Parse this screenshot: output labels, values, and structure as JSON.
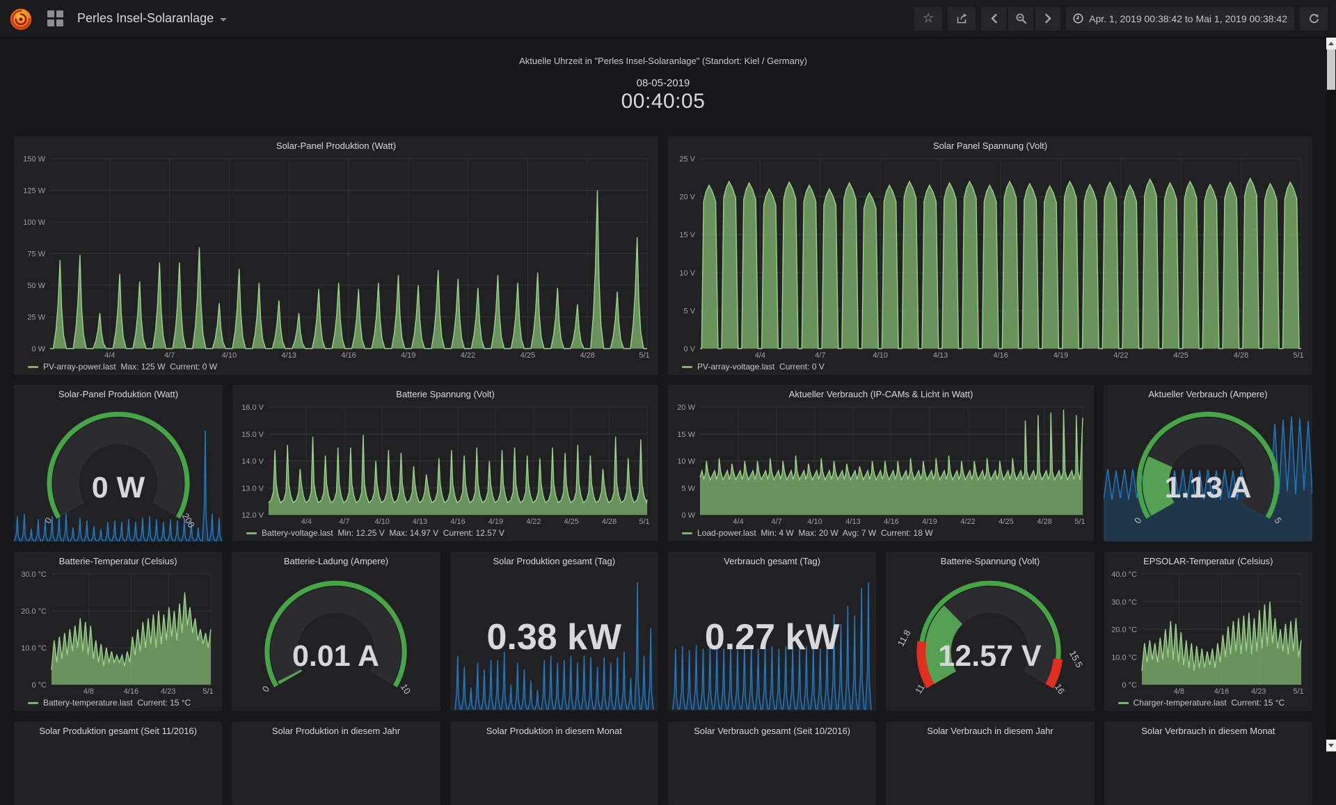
{
  "navbar": {
    "title": "Perles Insel-Solaranlage",
    "time_range": "Apr. 1, 2019 00:38:42 to Mai 1, 2019 00:38:42"
  },
  "clock_panel": {
    "title": "Aktuelle Uhrzeit in \"Perles Insel-Solaranlage\" (Standort: Kiel / Germany)",
    "date": "08-05-2019",
    "time": "00:40:05"
  },
  "colors": {
    "green": "#7eb26d",
    "green_line": "#9ed18d",
    "blue": "#1f78c1",
    "gauge_green": "#47a447",
    "gauge_wedge": "#56a053",
    "gauge_red": "#e02f1f"
  },
  "chart_data": [
    {
      "id": "solar_power",
      "type": "area",
      "shape": "spike",
      "title": "Solar-Panel Produktion (Watt)",
      "ymin": 0,
      "ymax": 150,
      "ml": 46,
      "yticks": [
        "150 W",
        "125 W",
        "100 W",
        "75 W",
        "50 W",
        "25 W",
        "0 W"
      ],
      "xticks": [
        {
          "f": 0.1,
          "l": "4/4"
        },
        {
          "f": 0.2,
          "l": "4/7"
        },
        {
          "f": 0.3,
          "l": "4/10"
        },
        {
          "f": 0.4,
          "l": "4/13"
        },
        {
          "f": 0.5,
          "l": "4/16"
        },
        {
          "f": 0.6,
          "l": "4/19"
        },
        {
          "f": 0.7,
          "l": "4/22"
        },
        {
          "f": 0.8,
          "l": "4/25"
        },
        {
          "f": 0.9,
          "l": "4/28"
        },
        {
          "f": 1,
          "l": "5/1"
        }
      ],
      "day_peaks": [
        70,
        74,
        28,
        59,
        53,
        68,
        68,
        80,
        36,
        63,
        52,
        38,
        28,
        47,
        52,
        47,
        52,
        58,
        50,
        62,
        55,
        48,
        58,
        52,
        60,
        48,
        35,
        125,
        45,
        88
      ],
      "color": "#7eb26d",
      "line": "#9ed18d",
      "legend": {
        "name": "PV-array-power.last",
        "stats": [
          "Max: 125 W",
          "Current: 0 W"
        ]
      }
    },
    {
      "id": "solar_voltage",
      "type": "area",
      "shape": "plateau",
      "title": "Solar Panel Spannung (Volt)",
      "ymin": 0,
      "ymax": 25,
      "ml": 40,
      "yticks": [
        "25 V",
        "20 V",
        "15 V",
        "10 V",
        "5 V",
        "0 V"
      ],
      "xticks": [
        {
          "f": 0.1,
          "l": "4/4"
        },
        {
          "f": 0.2,
          "l": "4/7"
        },
        {
          "f": 0.3,
          "l": "4/10"
        },
        {
          "f": 0.4,
          "l": "4/13"
        },
        {
          "f": 0.5,
          "l": "4/16"
        },
        {
          "f": 0.6,
          "l": "4/19"
        },
        {
          "f": 0.7,
          "l": "4/22"
        },
        {
          "f": 0.8,
          "l": "4/25"
        },
        {
          "f": 0.9,
          "l": "4/28"
        },
        {
          "f": 1,
          "l": "5/1"
        }
      ],
      "day_peaks": [
        21.5,
        22,
        21.8,
        21,
        21.9,
        21.5,
        21,
        21.8,
        20.5,
        21.5,
        22,
        21.5,
        21.8,
        22,
        21.5,
        22,
        21.7,
        21.4,
        22,
        21.6,
        21.9,
        21.5,
        22.3,
        21.8,
        22,
        21.6,
        21.9,
        22.4,
        21.7,
        21.9
      ],
      "color": "#7eb26d",
      "line": "#9ed18d",
      "legend": {
        "name": "PV-array-voltage.last",
        "stats": [
          "Current: 0 V"
        ]
      }
    },
    {
      "id": "gauge_solar",
      "type": "gauge",
      "title": "Solar-Panel Produktion (Watt)",
      "text": "0 W",
      "value": 0,
      "min": 0,
      "max": 200,
      "segments": [
        {
          "from": 0,
          "to": 200,
          "color": "#47a447",
          "w": 7
        }
      ],
      "spark": {
        "mode": "spike",
        "color": "#1f78c1",
        "heights": [
          18,
          20,
          9,
          16,
          15,
          18,
          18,
          20,
          10,
          17,
          15,
          11,
          9,
          14,
          15,
          14,
          16,
          14,
          17,
          18,
          16,
          14,
          16,
          15,
          16,
          14,
          10,
          80,
          20,
          17
        ]
      }
    },
    {
      "id": "battery_voltage",
      "type": "area",
      "shape": "battv",
      "title": "Batterie Spannung (Volt)",
      "ymin": 12,
      "ymax": 16,
      "ml": 46,
      "yticks": [
        "16.0 V",
        "15.0 V",
        "14.0 V",
        "13.0 V",
        "12.0 V"
      ],
      "xticks": [
        {
          "f": 0.1,
          "l": "4/4"
        },
        {
          "f": 0.2,
          "l": "4/7"
        },
        {
          "f": 0.3,
          "l": "4/10"
        },
        {
          "f": 0.4,
          "l": "4/13"
        },
        {
          "f": 0.5,
          "l": "4/16"
        },
        {
          "f": 0.6,
          "l": "4/19"
        },
        {
          "f": 0.7,
          "l": "4/22"
        },
        {
          "f": 0.8,
          "l": "4/25"
        },
        {
          "f": 0.9,
          "l": "4/28"
        },
        {
          "f": 1,
          "l": "5/1"
        }
      ],
      "day_peaks": [
        14.4,
        14.6,
        13.7,
        14.9,
        14.2,
        14.5,
        14.5,
        14.97,
        14.0,
        14.4,
        14.3,
        13.8,
        13.5,
        14.1,
        14.4,
        14.2,
        14.5,
        14.0,
        14.4,
        14.5,
        14.2,
        14.1,
        14.5,
        14.3,
        14.6,
        14.2,
        13.7,
        14.9,
        14.1,
        14.8
      ],
      "color": "#7eb26d",
      "line": "#9ed18d",
      "legend": {
        "name": "Battery-voltage.last",
        "stats": [
          "Min: 12.25 V",
          "Max: 14.97 V",
          "Current: 12.57 V"
        ]
      }
    },
    {
      "id": "load_power",
      "type": "area",
      "shape": "load",
      "title": "Aktueller Verbrauch (IP-CAMs & Licht in Watt)",
      "ymin": 0,
      "ymax": 20,
      "ml": 40,
      "yticks": [
        "20 W",
        "15 W",
        "10 W",
        "5 W",
        "0 W"
      ],
      "xticks": [
        {
          "f": 0.1,
          "l": "4/4"
        },
        {
          "f": 0.2,
          "l": "4/7"
        },
        {
          "f": 0.3,
          "l": "4/10"
        },
        {
          "f": 0.4,
          "l": "4/13"
        },
        {
          "f": 0.5,
          "l": "4/16"
        },
        {
          "f": 0.6,
          "l": "4/19"
        },
        {
          "f": 0.7,
          "l": "4/22"
        },
        {
          "f": 0.8,
          "l": "4/25"
        },
        {
          "f": 0.9,
          "l": "4/28"
        },
        {
          "f": 1,
          "l": "5/1"
        }
      ],
      "day_peaks": [
        10,
        10.5,
        9.5,
        10,
        10,
        10.5,
        10,
        11,
        9.5,
        10.5,
        10,
        9.5,
        9,
        10,
        10,
        10,
        10.5,
        10,
        10.5,
        11,
        10,
        10,
        10.5,
        10,
        10.5,
        17.5,
        18.5,
        19,
        19.5,
        18.5
      ],
      "color": "#7eb26d",
      "line": "#9ed18d",
      "legend": {
        "name": "Load-power.last",
        "stats": [
          "Min: 4 W",
          "Max: 20 W",
          "Avg: 7 W",
          "Current: 18 W"
        ]
      }
    },
    {
      "id": "gauge_ampere",
      "type": "gauge",
      "title": "Aktueller Verbrauch (Ampere)",
      "text": "1.13 A",
      "value": 1.13,
      "min": 0,
      "max": 5,
      "segments": [
        {
          "from": 0,
          "to": 5,
          "color": "#47a447",
          "w": 7
        }
      ],
      "spark": {
        "mode": "wave",
        "color": "#1f78c1",
        "heights": [
          30,
          52,
          30,
          51,
          31,
          52,
          30,
          52,
          31,
          51,
          30,
          52,
          30,
          51,
          31,
          52,
          30,
          51,
          31,
          52,
          30,
          52,
          31,
          51,
          30,
          52,
          31,
          51,
          30,
          52,
          31,
          51,
          30,
          52,
          30,
          51,
          31,
          52,
          30,
          48,
          34,
          85,
          34,
          88,
          36,
          90,
          34,
          89,
          37,
          87,
          34
        ]
      }
    },
    {
      "id": "battery_temp",
      "type": "area",
      "shape": "line",
      "title": "Batterie-Temperatur (Celsius)",
      "ymin": 0,
      "ymax": 30,
      "ml": 48,
      "yticks": [
        "30.0 °C",
        "20.0 °C",
        "10.0 °C",
        "0 °C"
      ],
      "xticks": [
        {
          "f": 0.233,
          "l": "4/8"
        },
        {
          "f": 0.5,
          "l": "4/16"
        },
        {
          "f": 0.733,
          "l": "4/23"
        },
        {
          "f": 1,
          "l": "5/1"
        }
      ],
      "values": [
        4,
        12,
        6,
        13,
        7,
        14,
        8,
        15,
        9,
        16,
        10,
        18,
        9,
        17,
        8,
        16,
        7,
        12,
        6,
        11,
        5,
        10,
        6,
        9,
        6,
        8,
        6,
        8,
        5,
        9,
        6,
        13,
        8,
        15,
        9,
        17,
        10,
        18,
        11,
        19,
        10,
        20,
        11,
        19,
        12,
        21,
        13,
        20,
        12,
        22,
        14,
        25,
        16,
        21,
        14,
        18,
        12,
        15,
        11,
        14,
        10,
        15
      ],
      "color": "#7eb26d",
      "line": "#9ed18d",
      "legend": {
        "name": "Battery-temperature.last",
        "stats": [
          "Current: 15 °C"
        ]
      }
    },
    {
      "id": "gauge_ladung",
      "type": "gauge",
      "title": "Batterie-Ladung (Ampere)",
      "text": "0.01 A",
      "value": 0.01,
      "min": 0,
      "max": 10,
      "segments": [
        {
          "from": 0,
          "to": 10,
          "color": "#47a447",
          "w": 7
        }
      ]
    },
    {
      "id": "prod_tag",
      "type": "singlestat",
      "title": "Solar Produktion gesamt (Tag)",
      "value": "0.38 kW",
      "spark": {
        "mode": "spike",
        "color": "#1f78c1",
        "heights": [
          39,
          31,
          16,
          34,
          29,
          36,
          36,
          42,
          18,
          34,
          29,
          21,
          14,
          36,
          39,
          34,
          36,
          39,
          34,
          39,
          38,
          31,
          38,
          34,
          38,
          42,
          23,
          92,
          39,
          59
        ]
      }
    },
    {
      "id": "verbrauch_tag",
      "type": "singlestat",
      "title": "Verbrauch gesamt (Tag)",
      "value": "0.27 kW",
      "spark": {
        "mode": "spike",
        "color": "#1f78c1",
        "heights": [
          44,
          46,
          43,
          47,
          44,
          46,
          47,
          44,
          46,
          43,
          47,
          46,
          44,
          47,
          46,
          44,
          46,
          47,
          44,
          46,
          47,
          44,
          52,
          69,
          62,
          75,
          68,
          88,
          92
        ]
      }
    },
    {
      "id": "gauge_battv",
      "type": "gauge",
      "title": "Batterie-Spannung (Volt)",
      "text": "12.57 V",
      "value": 12.57,
      "min": 11,
      "max": 16,
      "segments": [
        {
          "from": 11,
          "to": 11.8,
          "color": "#e02f1f",
          "w": 13
        },
        {
          "from": 11.8,
          "to": 15.5,
          "color": "#47a447",
          "w": 7
        },
        {
          "from": 15.5,
          "to": 16,
          "color": "#e02f1f",
          "w": 13
        }
      ],
      "threshold_labels": [
        {
          "v": 11.8
        },
        {
          "v": 15.5
        }
      ]
    },
    {
      "id": "epsolar_temp",
      "type": "area",
      "shape": "line",
      "title": "EPSOLAR-Temperatur (Celsius)",
      "ymin": 0,
      "ymax": 40,
      "ml": 48,
      "yticks": [
        "40.0 °C",
        "30.0 °C",
        "20.0 °C",
        "10.0 °C",
        "0 °C"
      ],
      "xticks": [
        {
          "f": 0.233,
          "l": "4/8"
        },
        {
          "f": 0.5,
          "l": "4/16"
        },
        {
          "f": 0.733,
          "l": "4/23"
        },
        {
          "f": 1,
          "l": "5/1"
        }
      ],
      "values": [
        5,
        15,
        8,
        16,
        9,
        15,
        8,
        17,
        9,
        20,
        10,
        23,
        9,
        22,
        8,
        19,
        7,
        16,
        6,
        15,
        5,
        14,
        6,
        13,
        6,
        12,
        7,
        13,
        6,
        15,
        8,
        18,
        10,
        21,
        11,
        23,
        12,
        24,
        11,
        25,
        12,
        26,
        11,
        24,
        12,
        27,
        13,
        29,
        14,
        30,
        15,
        24,
        13,
        20,
        12,
        22,
        11,
        23,
        12,
        24,
        10,
        16
      ],
      "color": "#7eb26d",
      "line": "#9ed18d",
      "legend": {
        "name": "Charger-temperature.last",
        "stats": [
          "Current: 15 °C"
        ]
      }
    }
  ],
  "bottom_row": [
    "Solar Produktion gesamt (Seit 11/2016)",
    "Solar Produktion in diesem Jahr",
    "Solar Produktion in diesem Monat",
    "Solar Verbrauch gesamt (Seit 10/2016)",
    "Solar Verbrauch in diesem Jahr",
    "Solar Verbrauch in diesem Monat"
  ]
}
